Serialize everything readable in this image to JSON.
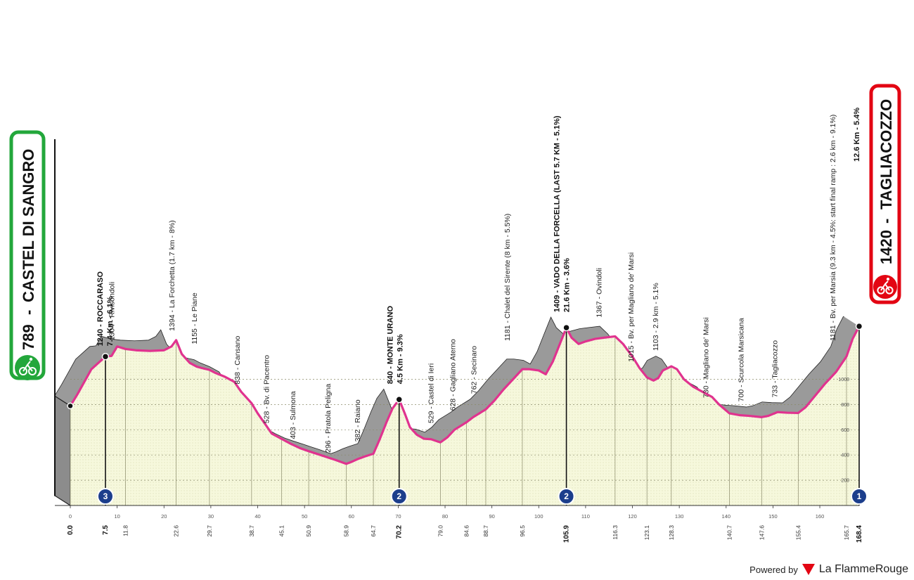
{
  "chart_data": {
    "type": "area",
    "start": {
      "elevation": "789",
      "name": "CASTEL DI SANGRO",
      "color": "#23a73b"
    },
    "finish": {
      "elevation": "1420",
      "name": "TAGLIACOZZO",
      "climb_info": "12.6 Km - 5.4%",
      "color": "#e30613"
    },
    "profile": [
      [
        0,
        789
      ],
      [
        1.5,
        880
      ],
      [
        3,
        980
      ],
      [
        4.5,
        1080
      ],
      [
        6.3,
        1140
      ],
      [
        7.5,
        1180
      ],
      [
        8.8,
        1185
      ],
      [
        10,
        1260
      ],
      [
        11.8,
        1240
      ],
      [
        14,
        1230
      ],
      [
        17,
        1225
      ],
      [
        20,
        1230
      ],
      [
        21.6,
        1260
      ],
      [
        22.6,
        1310
      ],
      [
        23.8,
        1200
      ],
      [
        25.5,
        1130
      ],
      [
        27,
        1100
      ],
      [
        28.5,
        1085
      ],
      [
        29.7,
        1075
      ],
      [
        31,
        1050
      ],
      [
        33,
        1020
      ],
      [
        35,
        980
      ],
      [
        36.5,
        900
      ],
      [
        38.7,
        810
      ],
      [
        40,
        730
      ],
      [
        41.5,
        650
      ],
      [
        43,
        570
      ],
      [
        45.1,
        528
      ],
      [
        47,
        490
      ],
      [
        49,
        455
      ],
      [
        50.9,
        430
      ],
      [
        53,
        405
      ],
      [
        55,
        380
      ],
      [
        56.5,
        362
      ],
      [
        58.9,
        330
      ],
      [
        60,
        345
      ],
      [
        61.5,
        370
      ],
      [
        63,
        390
      ],
      [
        64.7,
        410
      ],
      [
        66,
        520
      ],
      [
        67.5,
        660
      ],
      [
        68.8,
        770
      ],
      [
        70.2,
        840
      ],
      [
        71.5,
        720
      ],
      [
        72.5,
        620
      ],
      [
        74,
        560
      ],
      [
        75.5,
        529
      ],
      [
        77,
        525
      ],
      [
        79,
        500
      ],
      [
        80.5,
        540
      ],
      [
        82,
        600
      ],
      [
        84.6,
        660
      ],
      [
        86,
        700
      ],
      [
        88.7,
        762
      ],
      [
        90.5,
        830
      ],
      [
        92.5,
        920
      ],
      [
        94.5,
        1000
      ],
      [
        96.5,
        1080
      ],
      [
        98,
        1080
      ],
      [
        100,
        1070
      ],
      [
        101.5,
        1040
      ],
      [
        103,
        1140
      ],
      [
        104.5,
        1280
      ],
      [
        105.9,
        1409
      ],
      [
        107,
        1330
      ],
      [
        108.5,
        1280
      ],
      [
        110,
        1300
      ],
      [
        112,
        1320
      ],
      [
        114,
        1330
      ],
      [
        116.3,
        1340
      ],
      [
        118,
        1280
      ],
      [
        120,
        1180
      ],
      [
        121.5,
        1090
      ],
      [
        123.1,
        1015
      ],
      [
        124.5,
        990
      ],
      [
        125.5,
        1010
      ],
      [
        126.5,
        1070
      ],
      [
        128.3,
        1103
      ],
      [
        129.5,
        1080
      ],
      [
        131,
        1000
      ],
      [
        133,
        940
      ],
      [
        135,
        900
      ],
      [
        137,
        860
      ],
      [
        138.5,
        800
      ],
      [
        140.7,
        730
      ],
      [
        143,
        715
      ],
      [
        145,
        710
      ],
      [
        147.6,
        700
      ],
      [
        149,
        710
      ],
      [
        151,
        740
      ],
      [
        153,
        735
      ],
      [
        155.4,
        733
      ],
      [
        157,
        780
      ],
      [
        159,
        870
      ],
      [
        161,
        960
      ],
      [
        163.5,
        1060
      ],
      [
        165.7,
        1181
      ],
      [
        167,
        1320
      ],
      [
        168.4,
        1420
      ]
    ],
    "shadow_peaks": [
      [
        6,
        1240
      ],
      [
        10,
        1304
      ],
      [
        21.6,
        1394
      ],
      [
        70.2,
        840
      ],
      [
        105.9,
        1409
      ],
      [
        123.1,
        1103
      ],
      [
        165.7,
        1181
      ]
    ],
    "waypoints": [
      {
        "km": 6.3,
        "elev": 1140,
        "label": "1240 - ROCCARASO",
        "sub": "7.4 Km - 6.1%",
        "bold": true
      },
      {
        "km": 8.8,
        "elev": 1185,
        "label": "1304 - Rivisondoli",
        "bold": false
      },
      {
        "km": 21.6,
        "elev": 1260,
        "label": "1394 - La Forchetta (1.7 km - 8%)",
        "bold": false
      },
      {
        "km": 26.4,
        "elev": 1155,
        "label": "1155 - Le Piane",
        "bold": false
      },
      {
        "km": 35.6,
        "elev": 838,
        "label": "838 - Cansano",
        "bold": false
      },
      {
        "km": 41.8,
        "elev": 528,
        "label": "528 - Bv. di Pacentro",
        "bold": false
      },
      {
        "km": 47.4,
        "elev": 403,
        "label": "403 - Sulmona",
        "bold": false
      },
      {
        "km": 54.9,
        "elev": 296,
        "label": "296 - Pratola Peligna",
        "bold": false
      },
      {
        "km": 61.2,
        "elev": 382,
        "label": "382 - Raiano",
        "bold": false
      },
      {
        "km": 68.2,
        "elev": 840,
        "label": "840 - MONTE URANO",
        "sub": "4.5 Km - 9.3%",
        "bold": true
      },
      {
        "km": 76.9,
        "elev": 529,
        "label": "529 - Castel di Ieri",
        "bold": false
      },
      {
        "km": 81.6,
        "elev": 628,
        "label": "628 - Gagliano Aterno",
        "bold": false
      },
      {
        "km": 86.1,
        "elev": 762,
        "label": "762 - Secinaro",
        "bold": false
      },
      {
        "km": 93.2,
        "elev": 1181,
        "label": "1181 - Chalet del Sirente (8 km - 5.5%)",
        "bold": false
      },
      {
        "km": 103.8,
        "elev": 1409,
        "label": "1409 - VADO DELLA FORCELLA (LAST 5.7 KM - 5.1%)",
        "sub": "21.6 Km - 3.6%",
        "bold": true
      },
      {
        "km": 112.8,
        "elev": 1367,
        "label": "1367 - Ovindoli",
        "bold": false
      },
      {
        "km": 119.6,
        "elev": 1015,
        "label": "1015 - Bv. per Magliano de' Marsi",
        "bold": false
      },
      {
        "km": 124.9,
        "elev": 1103,
        "label": "1103 - 2.9 km - 5.1%",
        "bold": false
      },
      {
        "km": 135.6,
        "elev": 730,
        "label": "730 - Magliano de' Marsi",
        "bold": false
      },
      {
        "km": 143.1,
        "elev": 700,
        "label": "700 - Scurcola Marsicana",
        "bold": false
      },
      {
        "km": 150.3,
        "elev": 733,
        "label": "733 - Tagliacozzo",
        "bold": false
      },
      {
        "km": 162.7,
        "elev": 1181,
        "label": "1181 - Bv. per Marsia (9.3 km - 4.5%: start final ramp : 2.6 km - 9.1%)",
        "bold": false
      }
    ],
    "climbs": [
      {
        "km": 7.5,
        "cat": "3"
      },
      {
        "km": 70.2,
        "cat": "2"
      },
      {
        "km": 105.9,
        "cat": "2"
      },
      {
        "km": 168.4,
        "cat": "1"
      }
    ],
    "km_marks": [
      "0.0",
      "7.5",
      "11.8",
      "22.6",
      "29.7",
      "38.7",
      "45.1",
      "50.9",
      "58.9",
      "64.7",
      "70.2",
      "79.0",
      "84.6",
      "88.7",
      "96.5",
      "105.9",
      "116.3",
      "123.1",
      "128.3",
      "140.7",
      "147.6",
      "155.4",
      "165.7",
      "168.4"
    ],
    "bold_km_marks": [
      "0.0",
      "7.5",
      "70.2",
      "105.9",
      "168.4"
    ],
    "x_ticks": [
      0,
      10,
      20,
      30,
      40,
      50,
      60,
      70,
      80,
      90,
      100,
      110,
      120,
      130,
      140,
      150,
      160
    ],
    "y_ticks": [
      200,
      400,
      600,
      800,
      1000
    ],
    "xlim": [
      0,
      168.4
    ]
  },
  "footer": {
    "powered": "Powered by",
    "brand": "La FlammeRouge"
  }
}
